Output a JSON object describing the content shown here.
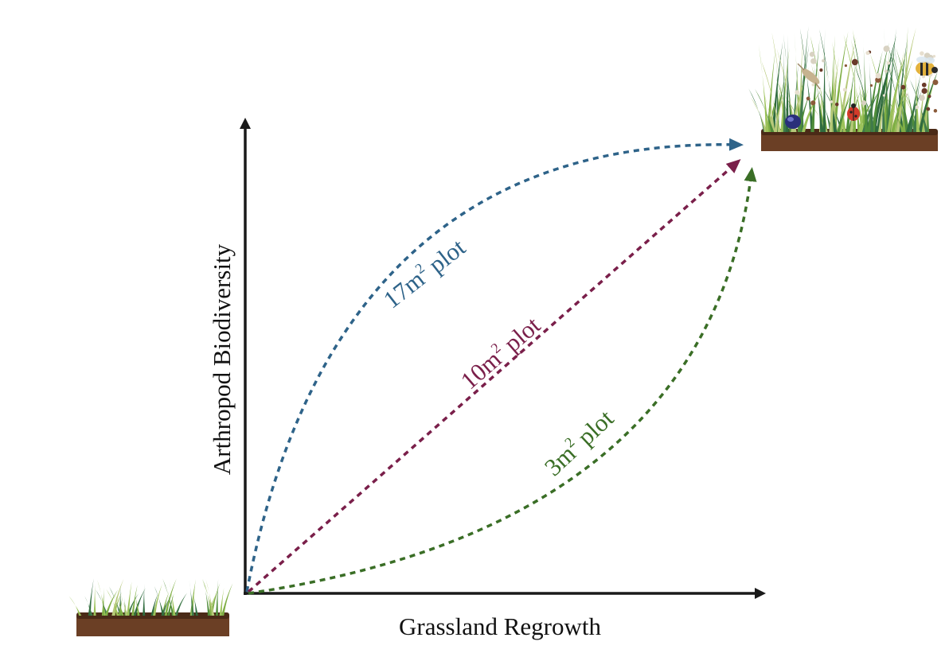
{
  "axes": {
    "x_label": "Grassland Regrowth",
    "y_label": "Arthropod Biodiversity"
  },
  "curves": [
    {
      "id": "plot-17",
      "label_main": "17m",
      "label_sup": "2",
      "label_rest": " plot",
      "color": "#2e6389"
    },
    {
      "id": "plot-10",
      "label_main": "10m",
      "label_sup": "2",
      "label_rest": " plot",
      "color": "#7a1f4a"
    },
    {
      "id": "plot-3",
      "label_main": "3m",
      "label_sup": "2",
      "label_rest": " plot",
      "color": "#3a6e26"
    }
  ],
  "colors": {
    "axis": "#1a1a1a",
    "soil": "#6b3f25",
    "soil_dark": "#4a2a17"
  },
  "illustrations": {
    "start": "sparse-grass-patch",
    "end": "dense-grassland-with-insects"
  }
}
